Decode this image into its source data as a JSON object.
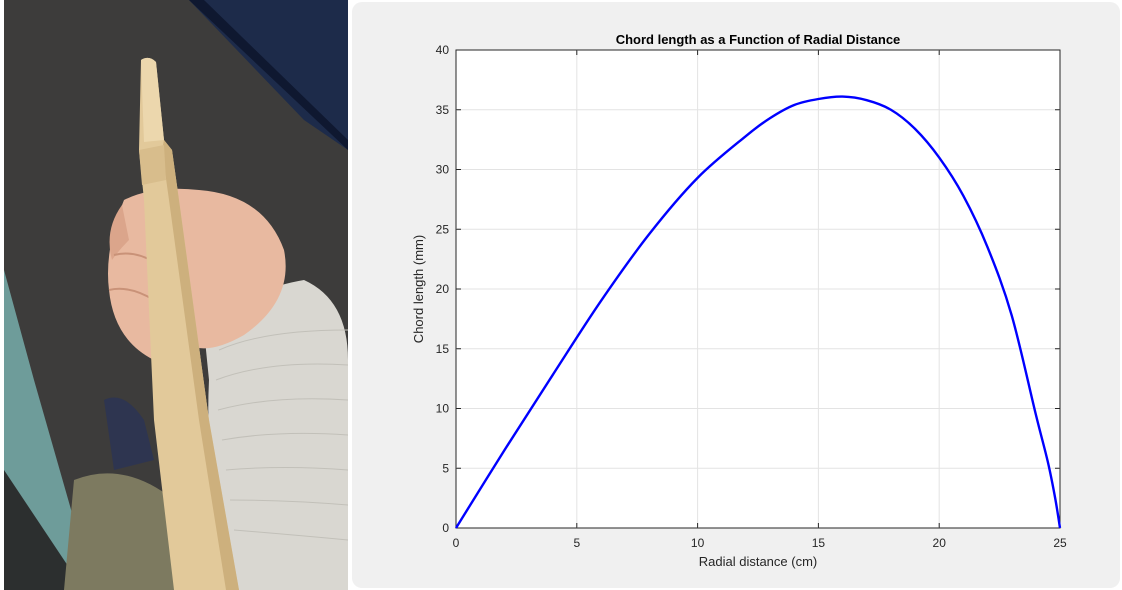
{
  "chart_data": {
    "type": "line",
    "title": "Chord length as a Function of Radial Distance",
    "xlabel": "Radial distance (cm)",
    "ylabel": "Chord length (mm)",
    "xlim": [
      0,
      25
    ],
    "ylim": [
      0,
      40
    ],
    "xticks": [
      0,
      5,
      10,
      15,
      20,
      25
    ],
    "yticks": [
      0,
      5,
      10,
      15,
      20,
      25,
      30,
      35,
      40
    ],
    "grid": true,
    "series": [
      {
        "color": "#0000ff",
        "x": [
          0,
          2,
          4,
          6,
          8,
          10,
          12,
          13,
          14,
          15,
          16,
          17,
          18,
          19,
          20,
          21,
          22,
          23,
          24,
          24.5,
          24.8,
          25
        ],
        "y": [
          0,
          6.5,
          12.8,
          19,
          24.6,
          29.3,
          32.8,
          34.3,
          35.4,
          35.9,
          36.1,
          35.8,
          35,
          33.4,
          31,
          27.8,
          23.5,
          17.8,
          9.5,
          5.5,
          2.5,
          0
        ]
      }
    ]
  }
}
